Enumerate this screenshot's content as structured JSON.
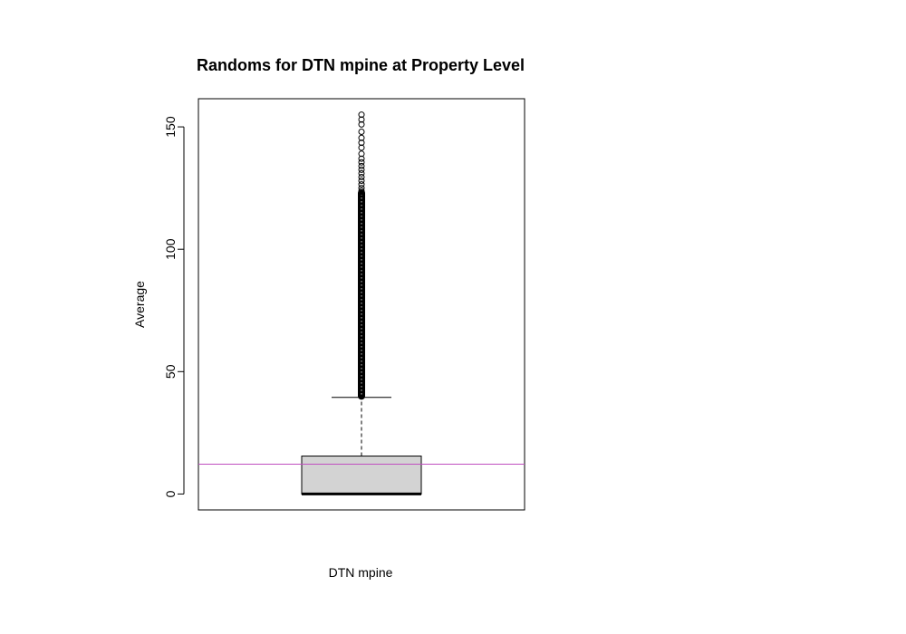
{
  "chart_data": {
    "type": "boxplot",
    "title": "Randoms for DTN mpine at Property Level",
    "xlabel": "DTN mpine",
    "ylabel": "Average",
    "ylim": [
      -6.5,
      161.5
    ],
    "yticks": [
      0,
      50,
      100,
      150
    ],
    "ytick_labels": [
      "0",
      "50",
      "100",
      "150"
    ],
    "grid": false,
    "legend": "none",
    "boxes": [
      {
        "name": "DTN mpine",
        "min": 0,
        "q1": 0,
        "median": 0,
        "q3": 15.5,
        "whisker_high": 39.5,
        "whisker_low": 0,
        "outlier_band": [
          40,
          123
        ],
        "outliers": [
          123.8,
          125,
          126.5,
          128,
          129.5,
          131,
          132.5,
          134,
          135.5,
          137,
          139,
          141.5,
          143.5,
          145.5,
          148,
          151,
          153,
          155
        ]
      }
    ],
    "reference_lines": [
      {
        "axis": "y",
        "value": 12.2,
        "color": "#c04fc0"
      }
    ],
    "colors": {
      "box_fill": "#d3d3d3",
      "stroke": "#000000",
      "reference_line": "#c04fc0"
    }
  }
}
